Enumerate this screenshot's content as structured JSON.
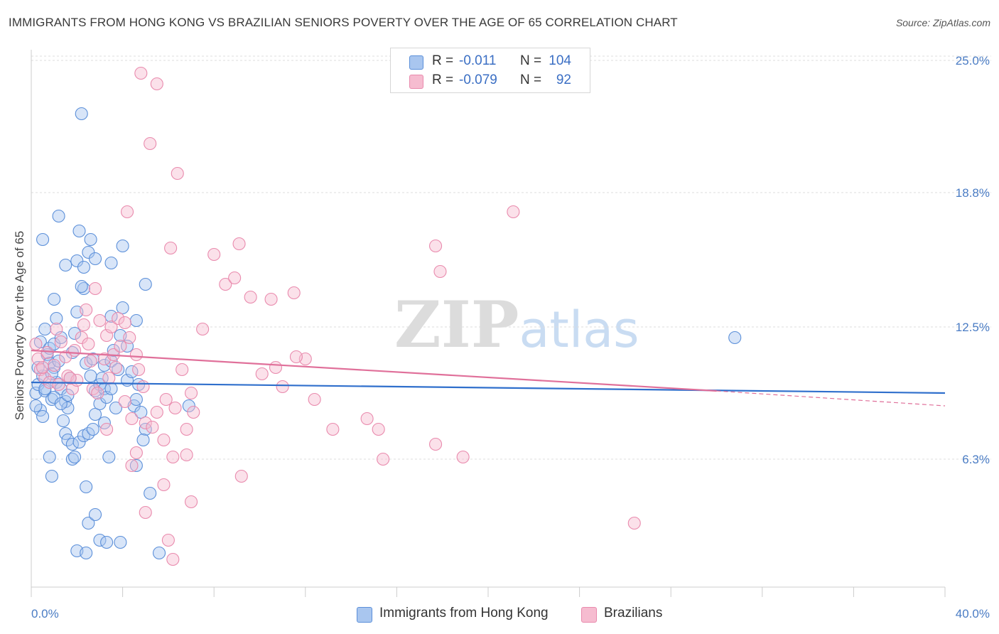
{
  "title": "IMMIGRANTS FROM HONG KONG VS BRAZILIAN SENIORS POVERTY OVER THE AGE OF 65 CORRELATION CHART",
  "source": "Source: ZipAtlas.com",
  "watermark": {
    "zip": "ZIP",
    "atlas": "atlas"
  },
  "legend": {
    "rows": [
      {
        "r_label": "R =",
        "r_value": "-0.011",
        "n_label": "N =",
        "n_value": "104"
      },
      {
        "r_label": "R =",
        "r_value": "-0.079",
        "n_label": "N =",
        "n_value": "92"
      }
    ]
  },
  "colors": {
    "blue_fill": "#a9c6ef",
    "blue_stroke": "#5b8fd9",
    "blue_line": "#2f6fcc",
    "pink_fill": "#f6bcd0",
    "pink_stroke": "#e98aad",
    "pink_line": "#e0709a",
    "grid": "#dddddd",
    "tick_text": "#4a7cc4"
  },
  "chart_data": {
    "type": "scatter",
    "title": "IMMIGRANTS FROM HONG KONG VS BRAZILIAN SENIORS POVERTY OVER THE AGE OF 65 CORRELATION CHART",
    "xlabel": "",
    "ylabel": "Seniors Poverty Over the Age of 65",
    "xlim": [
      0,
      40
    ],
    "ylim": [
      0.3,
      25.5
    ],
    "x_ticks": [
      0,
      4,
      8,
      12,
      16,
      20,
      24,
      28,
      32,
      36,
      40
    ],
    "x_tick_labels": {
      "first": "0.0%",
      "last": "40.0%"
    },
    "y_ticks": [
      6.3,
      12.5,
      18.8,
      25.0
    ],
    "y_tick_labels": [
      "6.3%",
      "12.5%",
      "18.8%",
      "25.0%"
    ],
    "grid": true,
    "legend_position": "bottom-center",
    "series": [
      {
        "name": "Immigrants from Hong Kong",
        "color": "blue",
        "trend": {
          "x": [
            0,
            40
          ],
          "y": [
            9.9,
            9.4
          ],
          "dashed_from": null
        },
        "points": [
          [
            0.2,
            9.4
          ],
          [
            0.3,
            9.8
          ],
          [
            0.4,
            8.6
          ],
          [
            0.5,
            10.2
          ],
          [
            0.6,
            9.5
          ],
          [
            0.7,
            11.2
          ],
          [
            0.8,
            10.8
          ],
          [
            0.9,
            9.1
          ],
          [
            1.0,
            10.6
          ],
          [
            1.1,
            9.9
          ],
          [
            0.4,
            11.8
          ],
          [
            0.6,
            12.4
          ],
          [
            0.8,
            11.5
          ],
          [
            1.2,
            10.9
          ],
          [
            1.3,
            9.6
          ],
          [
            1.5,
            9.0
          ],
          [
            1.6,
            8.7
          ],
          [
            1.7,
            10.1
          ],
          [
            1.8,
            11.3
          ],
          [
            1.9,
            12.2
          ],
          [
            0.5,
            16.6
          ],
          [
            1.2,
            17.7
          ],
          [
            2.1,
            17.0
          ],
          [
            1.0,
            13.8
          ],
          [
            1.1,
            12.9
          ],
          [
            2.3,
            14.3
          ],
          [
            2.2,
            14.4
          ],
          [
            2.0,
            15.6
          ],
          [
            2.5,
            16.0
          ],
          [
            2.6,
            16.6
          ],
          [
            1.5,
            15.4
          ],
          [
            2.3,
            15.3
          ],
          [
            2.8,
            15.7
          ],
          [
            3.5,
            15.5
          ],
          [
            4.0,
            16.3
          ],
          [
            2.0,
            13.2
          ],
          [
            3.5,
            13.0
          ],
          [
            4.0,
            13.4
          ],
          [
            4.6,
            12.8
          ],
          [
            5.0,
            14.5
          ],
          [
            2.4,
            10.8
          ],
          [
            2.6,
            10.2
          ],
          [
            2.8,
            9.5
          ],
          [
            2.8,
            8.4
          ],
          [
            3.0,
            9.8
          ],
          [
            3.1,
            10.1
          ],
          [
            3.2,
            10.7
          ],
          [
            3.5,
            10.9
          ],
          [
            3.6,
            11.4
          ],
          [
            3.8,
            10.5
          ],
          [
            3.0,
            8.9
          ],
          [
            3.2,
            9.6
          ],
          [
            3.3,
            9.2
          ],
          [
            3.5,
            9.6
          ],
          [
            3.7,
            8.7
          ],
          [
            4.2,
            10.0
          ],
          [
            4.5,
            8.8
          ],
          [
            4.6,
            9.1
          ],
          [
            4.7,
            9.8
          ],
          [
            4.8,
            8.5
          ],
          [
            1.0,
            9.2
          ],
          [
            1.3,
            8.9
          ],
          [
            1.4,
            8.1
          ],
          [
            1.5,
            7.5
          ],
          [
            1.6,
            7.2
          ],
          [
            1.8,
            7.0
          ],
          [
            2.1,
            7.1
          ],
          [
            2.3,
            7.4
          ],
          [
            2.5,
            7.5
          ],
          [
            2.7,
            7.7
          ],
          [
            0.8,
            6.4
          ],
          [
            0.9,
            5.5
          ],
          [
            1.8,
            6.3
          ],
          [
            1.9,
            6.4
          ],
          [
            3.4,
            6.4
          ],
          [
            4.6,
            6.0
          ],
          [
            2.4,
            5.0
          ],
          [
            5.0,
            7.7
          ],
          [
            5.2,
            4.7
          ],
          [
            4.9,
            7.2
          ],
          [
            2.5,
            3.3
          ],
          [
            2.8,
            3.7
          ],
          [
            2.0,
            2.0
          ],
          [
            2.4,
            1.9
          ],
          [
            3.0,
            2.5
          ],
          [
            3.3,
            2.4
          ],
          [
            3.9,
            2.4
          ],
          [
            5.6,
            1.9
          ],
          [
            2.2,
            22.5
          ],
          [
            30.8,
            12.0
          ],
          [
            6.9,
            8.8
          ],
          [
            0.3,
            10.6
          ],
          [
            0.6,
            9.6
          ],
          [
            0.9,
            10.3
          ],
          [
            1.0,
            11.7
          ],
          [
            1.3,
            12.0
          ],
          [
            1.6,
            9.3
          ],
          [
            2.7,
            11.0
          ],
          [
            3.2,
            8.0
          ],
          [
            4.2,
            11.6
          ],
          [
            0.2,
            8.8
          ],
          [
            0.5,
            8.3
          ],
          [
            4.4,
            10.4
          ],
          [
            3.9,
            12.1
          ]
        ]
      },
      {
        "name": "Brazilians",
        "color": "pink",
        "trend": {
          "x": [
            0,
            30
          ],
          "y": [
            11.4,
            9.5
          ],
          "dashed_from": 30,
          "dashed_to": {
            "x": 40,
            "y": 8.8
          }
        },
        "points": [
          [
            0.2,
            11.7
          ],
          [
            0.3,
            11.0
          ],
          [
            0.4,
            10.5
          ],
          [
            0.6,
            10.1
          ],
          [
            0.7,
            11.3
          ],
          [
            0.8,
            9.9
          ],
          [
            1.0,
            10.7
          ],
          [
            1.1,
            12.4
          ],
          [
            1.3,
            11.8
          ],
          [
            1.5,
            11.1
          ],
          [
            1.6,
            10.2
          ],
          [
            1.8,
            9.6
          ],
          [
            1.9,
            11.4
          ],
          [
            2.0,
            10.0
          ],
          [
            2.2,
            12.0
          ],
          [
            2.4,
            13.3
          ],
          [
            2.5,
            11.7
          ],
          [
            2.6,
            10.9
          ],
          [
            2.7,
            9.6
          ],
          [
            2.8,
            14.3
          ],
          [
            3.0,
            12.8
          ],
          [
            3.2,
            11.0
          ],
          [
            3.3,
            12.1
          ],
          [
            3.5,
            12.5
          ],
          [
            3.6,
            11.2
          ],
          [
            3.7,
            10.6
          ],
          [
            3.8,
            12.9
          ],
          [
            3.9,
            11.6
          ],
          [
            4.1,
            12.7
          ],
          [
            4.3,
            12.0
          ],
          [
            4.6,
            11.2
          ],
          [
            4.7,
            10.5
          ],
          [
            4.9,
            9.7
          ],
          [
            3.4,
            10.1
          ],
          [
            2.9,
            9.4
          ],
          [
            4.1,
            9.0
          ],
          [
            4.4,
            8.2
          ],
          [
            5.0,
            8.0
          ],
          [
            5.3,
            7.8
          ],
          [
            5.5,
            8.5
          ],
          [
            5.9,
            9.1
          ],
          [
            6.3,
            8.7
          ],
          [
            6.6,
            10.5
          ],
          [
            7.0,
            9.4
          ],
          [
            6.8,
            7.7
          ],
          [
            7.1,
            8.5
          ],
          [
            7.5,
            12.4
          ],
          [
            5.8,
            7.2
          ],
          [
            4.4,
            6.0
          ],
          [
            5.8,
            5.1
          ],
          [
            6.2,
            6.4
          ],
          [
            6.8,
            6.5
          ],
          [
            7.0,
            4.3
          ],
          [
            5.0,
            3.8
          ],
          [
            6.0,
            2.5
          ],
          [
            6.2,
            1.6
          ],
          [
            4.8,
            24.4
          ],
          [
            5.5,
            23.9
          ],
          [
            5.2,
            21.1
          ],
          [
            6.4,
            19.7
          ],
          [
            4.2,
            17.9
          ],
          [
            6.1,
            16.2
          ],
          [
            8.0,
            15.9
          ],
          [
            8.5,
            14.5
          ],
          [
            8.9,
            14.8
          ],
          [
            9.1,
            16.4
          ],
          [
            9.6,
            13.9
          ],
          [
            10.5,
            13.8
          ],
          [
            11.5,
            14.1
          ],
          [
            11.0,
            9.7
          ],
          [
            10.7,
            10.6
          ],
          [
            12.0,
            11.0
          ],
          [
            11.6,
            11.1
          ],
          [
            9.2,
            5.5
          ],
          [
            13.2,
            7.7
          ],
          [
            15.2,
            7.7
          ],
          [
            14.7,
            8.2
          ],
          [
            15.4,
            6.3
          ],
          [
            17.7,
            16.3
          ],
          [
            17.9,
            15.1
          ],
          [
            17.7,
            7.0
          ],
          [
            18.9,
            6.4
          ],
          [
            21.1,
            17.9
          ],
          [
            26.4,
            3.3
          ],
          [
            12.4,
            9.1
          ],
          [
            10.1,
            10.3
          ],
          [
            3.3,
            7.7
          ],
          [
            2.3,
            12.6
          ],
          [
            4.6,
            6.6
          ],
          [
            1.7,
            10.1
          ],
          [
            0.5,
            10.6
          ],
          [
            1.2,
            9.8
          ]
        ]
      }
    ]
  }
}
